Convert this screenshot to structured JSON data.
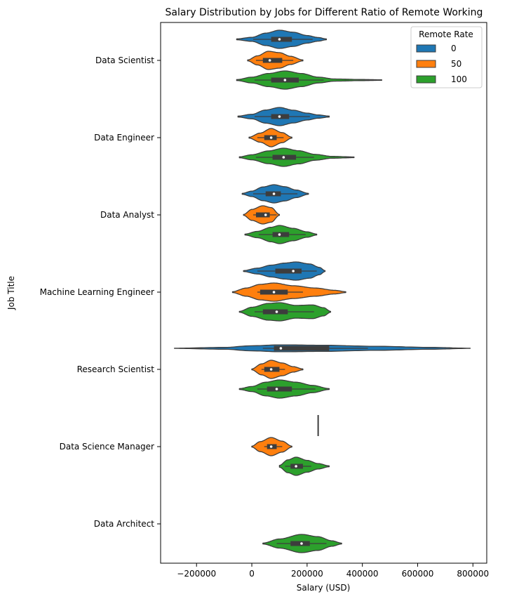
{
  "chart_data": {
    "type": "violin",
    "title": "Salary Distribution by Jobs for Different Ratio of Remote Working",
    "xlabel": "Salary (USD)",
    "ylabel": "Job Title",
    "xlim": [
      -330000,
      850000
    ],
    "xticks": [
      -200000,
      0,
      200000,
      400000,
      600000,
      800000
    ],
    "xtick_labels": [
      "−200000",
      "0",
      "200000",
      "400000",
      "600000",
      "800000"
    ],
    "categories": [
      "Data Scientist",
      "Data Engineer",
      "Data Analyst",
      "Machine Learning Engineer",
      "Research Scientist",
      "Data Science Manager",
      "Data Architect"
    ],
    "legend": {
      "title": "Remote Rate",
      "placement": "top-right",
      "entries": [
        {
          "name": "0",
          "color": "#1f77b4"
        },
        {
          "name": "50",
          "color": "#ff7f0e"
        },
        {
          "name": "100",
          "color": "#2ca02c"
        }
      ]
    },
    "series": [
      {
        "name": "0",
        "color": "#1f77b4",
        "violins": [
          {
            "category": "Data Scientist",
            "min": -55000,
            "max": 270000,
            "q1": 70000,
            "median": 100000,
            "q3": 145000,
            "whisker_low": 5000,
            "whisker_high": 220000,
            "profile": [
              [
                -55000,
                0.05
              ],
              [
                0,
                0.22
              ],
              [
                50000,
                0.68
              ],
              [
                100000,
                1.0
              ],
              [
                150000,
                0.78
              ],
              [
                200000,
                0.42
              ],
              [
                240000,
                0.2
              ],
              [
                270000,
                0.05
              ]
            ]
          },
          {
            "category": "Data Engineer",
            "min": -50000,
            "max": 280000,
            "q1": 70000,
            "median": 100000,
            "q3": 135000,
            "whisker_low": 10000,
            "whisker_high": 210000,
            "profile": [
              [
                -50000,
                0.05
              ],
              [
                0,
                0.25
              ],
              [
                50000,
                0.72
              ],
              [
                100000,
                1.0
              ],
              [
                150000,
                0.7
              ],
              [
                200000,
                0.38
              ],
              [
                240000,
                0.18
              ],
              [
                280000,
                0.05
              ]
            ]
          },
          {
            "category": "Data Analyst",
            "min": -35000,
            "max": 205000,
            "q1": 50000,
            "median": 80000,
            "q3": 105000,
            "whisker_low": 5000,
            "whisker_high": 165000,
            "profile": [
              [
                -35000,
                0.05
              ],
              [
                0,
                0.3
              ],
              [
                40000,
                0.75
              ],
              [
                80000,
                1.0
              ],
              [
                120000,
                0.78
              ],
              [
                160000,
                0.42
              ],
              [
                205000,
                0.05
              ]
            ]
          },
          {
            "category": "Machine Learning Engineer",
            "min": -30000,
            "max": 265000,
            "q1": 85000,
            "median": 150000,
            "q3": 180000,
            "whisker_low": 20000,
            "whisker_high": 235000,
            "profile": [
              [
                -30000,
                0.05
              ],
              [
                20000,
                0.32
              ],
              [
                70000,
                0.65
              ],
              [
                120000,
                0.88
              ],
              [
                160000,
                1.0
              ],
              [
                210000,
                0.78
              ],
              [
                245000,
                0.4
              ],
              [
                265000,
                0.05
              ]
            ]
          },
          {
            "category": "Research Scientist",
            "min": -280000,
            "max": 790000,
            "q1": 80000,
            "median": 105000,
            "q3": 280000,
            "whisker_low": 40000,
            "whisker_high": 420000,
            "profile": [
              [
                -280000,
                0.01
              ],
              [
                -100000,
                0.1
              ],
              [
                0,
                0.28
              ],
              [
                100000,
                0.38
              ],
              [
                250000,
                0.34
              ],
              [
                450000,
                0.22
              ],
              [
                650000,
                0.1
              ],
              [
                790000,
                0.01
              ]
            ]
          },
          {
            "category": "Data Science Manager",
            "min": 240000,
            "max": 240000,
            "q1": 240000,
            "median": 240000,
            "q3": 240000,
            "whisker_low": 240000,
            "whisker_high": 240000,
            "profile": []
          }
        ]
      },
      {
        "name": "50",
        "color": "#ff7f0e",
        "violins": [
          {
            "category": "Data Scientist",
            "min": -15000,
            "max": 185000,
            "q1": 40000,
            "median": 65000,
            "q3": 110000,
            "whisker_low": 15000,
            "whisker_high": 150000,
            "profile": [
              [
                -15000,
                0.05
              ],
              [
                20000,
                0.5
              ],
              [
                60000,
                1.0
              ],
              [
                100000,
                0.85
              ],
              [
                140000,
                0.45
              ],
              [
                185000,
                0.05
              ]
            ]
          },
          {
            "category": "Data Engineer",
            "min": -10000,
            "max": 145000,
            "q1": 45000,
            "median": 70000,
            "q3": 90000,
            "whisker_low": 20000,
            "whisker_high": 115000,
            "profile": [
              [
                -10000,
                0.05
              ],
              [
                30000,
                0.5
              ],
              [
                70000,
                1.0
              ],
              [
                110000,
                0.55
              ],
              [
                145000,
                0.05
              ]
            ]
          },
          {
            "category": "Data Analyst",
            "min": -30000,
            "max": 100000,
            "q1": 15000,
            "median": 50000,
            "q3": 65000,
            "whisker_low": 5000,
            "whisker_high": 90000,
            "profile": [
              [
                -30000,
                0.05
              ],
              [
                0,
                0.6
              ],
              [
                40000,
                1.0
              ],
              [
                70000,
                0.8
              ],
              [
                100000,
                0.05
              ]
            ]
          },
          {
            "category": "Machine Learning Engineer",
            "min": -70000,
            "max": 340000,
            "q1": 30000,
            "median": 80000,
            "q3": 130000,
            "whisker_low": 20000,
            "whisker_high": 185000,
            "profile": [
              [
                -70000,
                0.05
              ],
              [
                -20000,
                0.45
              ],
              [
                30000,
                0.85
              ],
              [
                80000,
                1.0
              ],
              [
                150000,
                0.7
              ],
              [
                230000,
                0.45
              ],
              [
                300000,
                0.2
              ],
              [
                340000,
                0.05
              ]
            ]
          },
          {
            "category": "Research Scientist",
            "min": 0,
            "max": 185000,
            "q1": 45000,
            "median": 70000,
            "q3": 100000,
            "whisker_low": 35000,
            "whisker_high": 120000,
            "profile": [
              [
                0,
                0.05
              ],
              [
                35000,
                0.6
              ],
              [
                70000,
                1.0
              ],
              [
                110000,
                0.7
              ],
              [
                150000,
                0.3
              ],
              [
                185000,
                0.05
              ]
            ]
          },
          {
            "category": "Data Science Manager",
            "min": 0,
            "max": 145000,
            "q1": 55000,
            "median": 70000,
            "q3": 90000,
            "whisker_low": 45000,
            "whisker_high": 110000,
            "profile": [
              [
                0,
                0.05
              ],
              [
                30000,
                0.55
              ],
              [
                70000,
                1.0
              ],
              [
                110000,
                0.6
              ],
              [
                145000,
                0.05
              ]
            ]
          }
        ]
      },
      {
        "name": "100",
        "color": "#2ca02c",
        "violins": [
          {
            "category": "Data Scientist",
            "min": -55000,
            "max": 470000,
            "q1": 70000,
            "median": 120000,
            "q3": 170000,
            "whisker_low": 10000,
            "whisker_high": 260000,
            "profile": [
              [
                -55000,
                0.05
              ],
              [
                0,
                0.32
              ],
              [
                60000,
                0.72
              ],
              [
                120000,
                1.0
              ],
              [
                180000,
                0.72
              ],
              [
                240000,
                0.32
              ],
              [
                300000,
                0.12
              ],
              [
                400000,
                0.06
              ],
              [
                470000,
                0.03
              ]
            ]
          },
          {
            "category": "Data Engineer",
            "min": -45000,
            "max": 370000,
            "q1": 75000,
            "median": 115000,
            "q3": 160000,
            "whisker_low": 15000,
            "whisker_high": 225000,
            "profile": [
              [
                -45000,
                0.05
              ],
              [
                0,
                0.28
              ],
              [
                60000,
                0.7
              ],
              [
                115000,
                1.0
              ],
              [
                170000,
                0.72
              ],
              [
                230000,
                0.32
              ],
              [
                290000,
                0.1
              ],
              [
                370000,
                0.04
              ]
            ]
          },
          {
            "category": "Data Analyst",
            "min": -25000,
            "max": 235000,
            "q1": 75000,
            "median": 100000,
            "q3": 135000,
            "whisker_low": 25000,
            "whisker_high": 195000,
            "profile": [
              [
                -25000,
                0.05
              ],
              [
                20000,
                0.35
              ],
              [
                70000,
                0.8
              ],
              [
                100000,
                1.0
              ],
              [
                150000,
                0.68
              ],
              [
                200000,
                0.3
              ],
              [
                235000,
                0.05
              ]
            ]
          },
          {
            "category": "Machine Learning Engineer",
            "min": -45000,
            "max": 285000,
            "q1": 40000,
            "median": 90000,
            "q3": 130000,
            "whisker_low": 10000,
            "whisker_high": 225000,
            "profile": [
              [
                -45000,
                0.05
              ],
              [
                0,
                0.5
              ],
              [
                60000,
                0.92
              ],
              [
                100000,
                1.0
              ],
              [
                160000,
                0.7
              ],
              [
                220000,
                0.75
              ],
              [
                260000,
                0.45
              ],
              [
                285000,
                0.05
              ]
            ]
          },
          {
            "category": "Research Scientist",
            "min": -45000,
            "max": 280000,
            "q1": 55000,
            "median": 90000,
            "q3": 145000,
            "whisker_low": 20000,
            "whisker_high": 230000,
            "profile": [
              [
                -45000,
                0.05
              ],
              [
                0,
                0.28
              ],
              [
                50000,
                0.75
              ],
              [
                100000,
                1.0
              ],
              [
                160000,
                0.75
              ],
              [
                220000,
                0.4
              ],
              [
                280000,
                0.05
              ]
            ]
          },
          {
            "category": "Data Science Manager",
            "min": 100000,
            "max": 280000,
            "q1": 140000,
            "median": 160000,
            "q3": 185000,
            "whisker_low": 120000,
            "whisker_high": 215000,
            "profile": [
              [
                100000,
                0.1
              ],
              [
                130000,
                0.7
              ],
              [
                160000,
                1.0
              ],
              [
                200000,
                0.65
              ],
              [
                240000,
                0.3
              ],
              [
                280000,
                0.05
              ]
            ]
          },
          {
            "category": "Data Architect",
            "min": 40000,
            "max": 325000,
            "q1": 140000,
            "median": 180000,
            "q3": 210000,
            "whisker_low": 90000,
            "whisker_high": 270000,
            "profile": [
              [
                40000,
                0.05
              ],
              [
                100000,
                0.5
              ],
              [
                180000,
                1.0
              ],
              [
                240000,
                0.75
              ],
              [
                290000,
                0.3
              ],
              [
                325000,
                0.05
              ]
            ]
          }
        ]
      }
    ]
  }
}
